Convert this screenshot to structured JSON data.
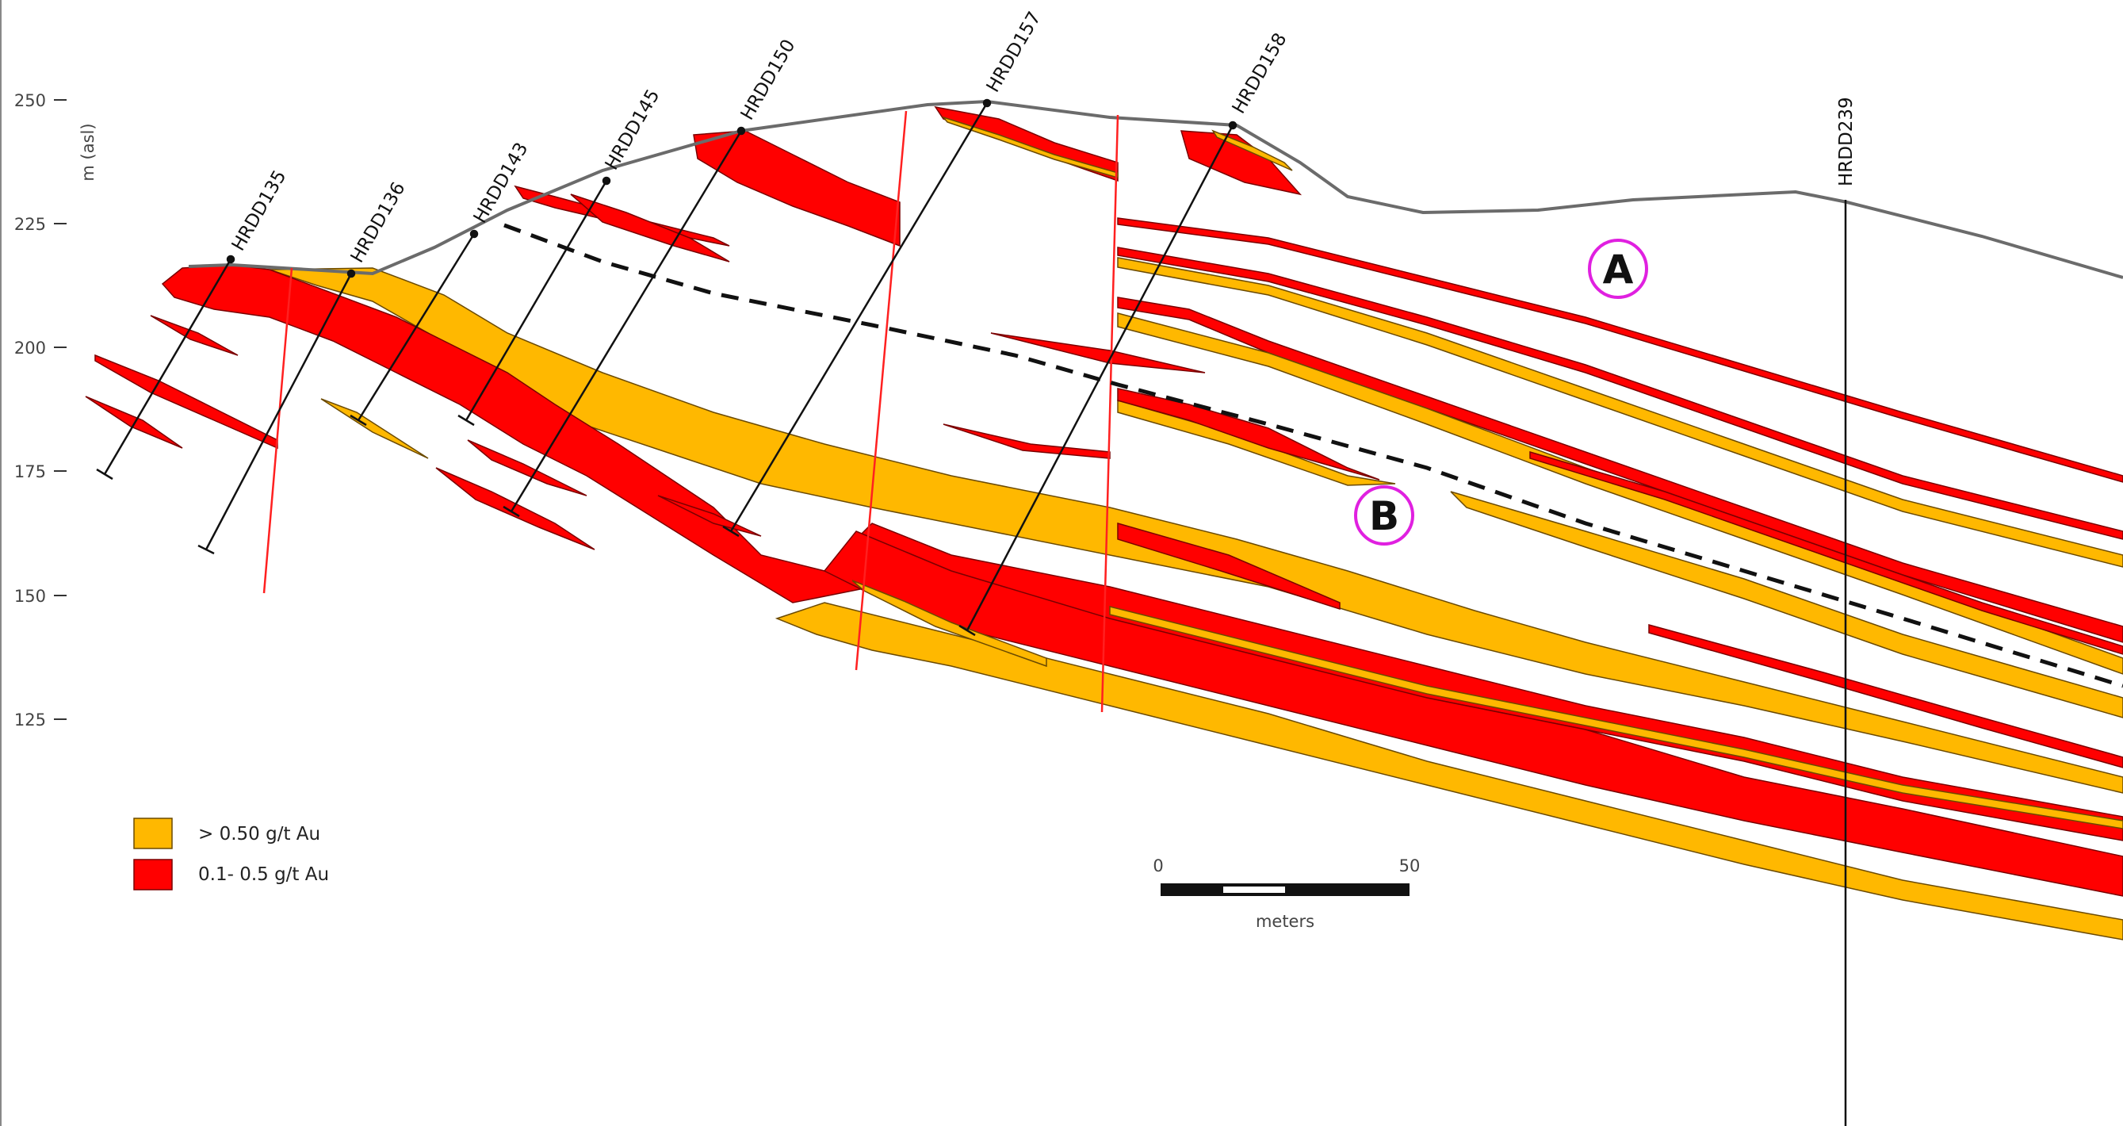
{
  "y_axis": {
    "label": "m (asl)",
    "ticks": [
      "250",
      "225",
      "200",
      "175",
      "150",
      "125"
    ]
  },
  "drillholes": [
    "HRDD135",
    "HRDD136",
    "HRDD143",
    "HRDD145",
    "HRDD150",
    "HRDD157",
    "HRDD158",
    "HRDD239"
  ],
  "markers": [
    "A",
    "B"
  ],
  "legend": {
    "items": [
      {
        "label": "> 0.50 g/t Au",
        "color": "#FFB800"
      },
      {
        "label": "0.1- 0.5 g/t Au",
        "color": "#FF0000"
      }
    ]
  },
  "scale_bar": {
    "start": "0",
    "end": "50",
    "unit": "meters"
  },
  "colors": {
    "high_grade": "#FFB800",
    "low_grade": "#FF0000",
    "topography": "#6b6b6b",
    "marker_ring": "#e020e0",
    "fault": "#ff2020"
  }
}
